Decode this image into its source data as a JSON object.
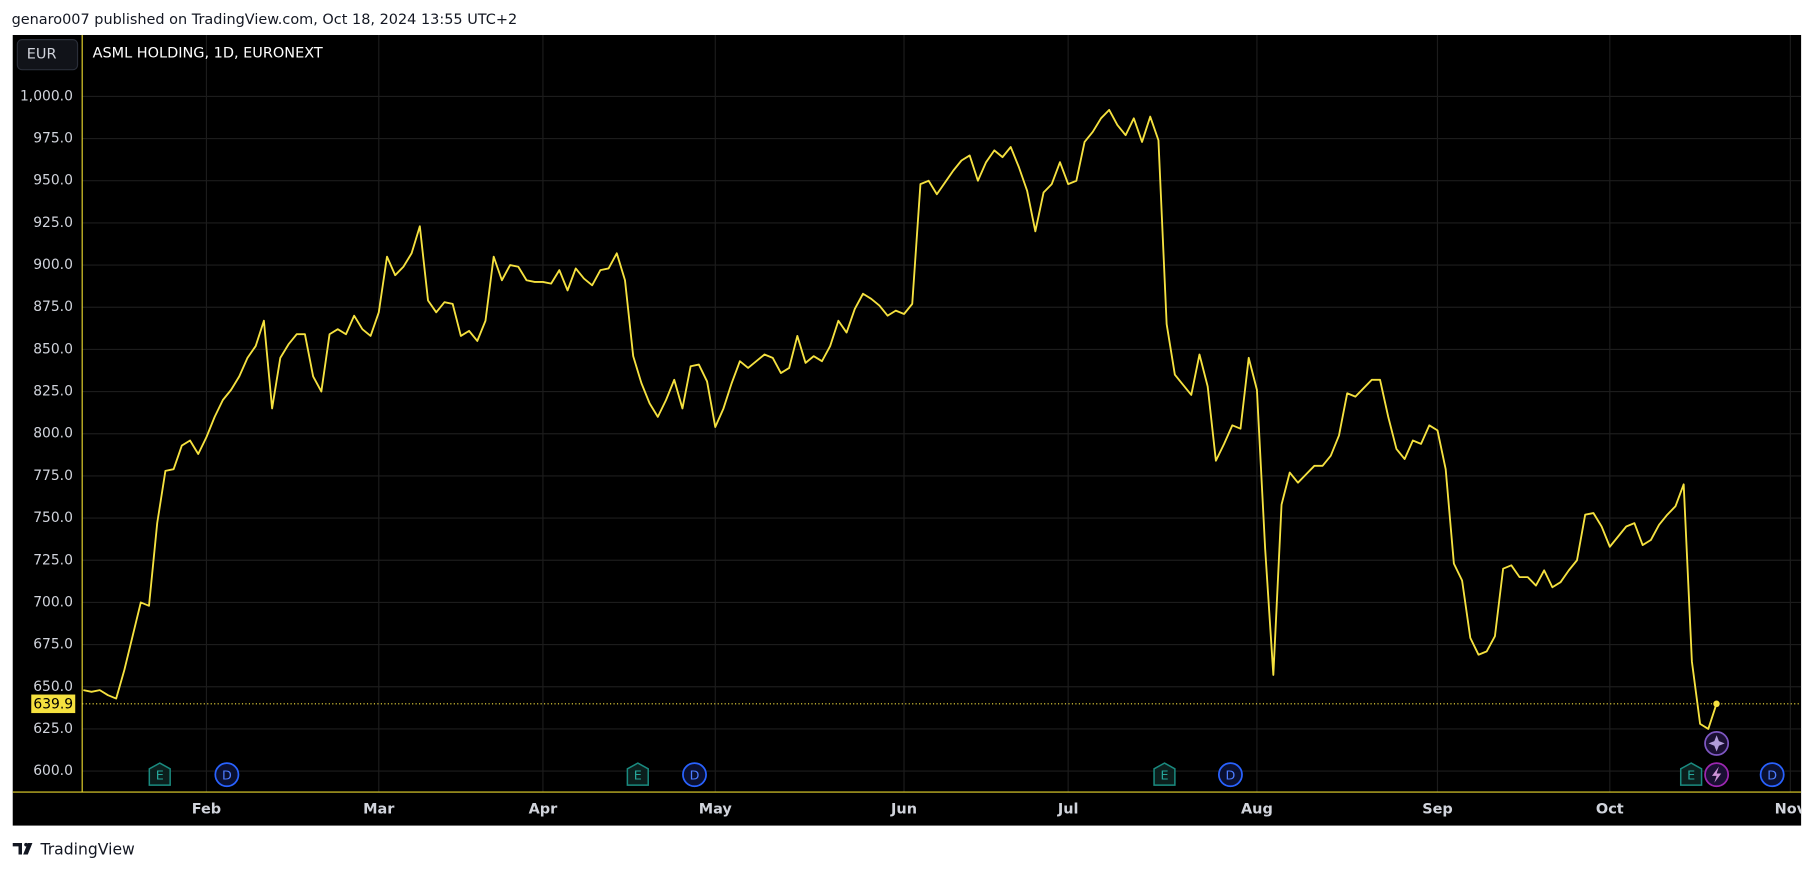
{
  "header": "genaro007 published on TradingView.com, Oct 18, 2024 13:55 UTC+2",
  "footer": "TradingView",
  "currency_button": "EUR",
  "chart_data": {
    "type": "line",
    "title": "ASML HOLDING, 1D, EURONEXT",
    "color": "#f5e13f",
    "grid": true,
    "ylim": [
      587.6,
      1036.4
    ],
    "yticks": [
      {
        "value": 600,
        "label": "600.0"
      },
      {
        "value": 625,
        "label": "625.0"
      },
      {
        "value": 650,
        "label": "650.0"
      },
      {
        "value": 675,
        "label": "675.0"
      },
      {
        "value": 700,
        "label": "700.0"
      },
      {
        "value": 725,
        "label": "725.0"
      },
      {
        "value": 750,
        "label": "750.0"
      },
      {
        "value": 775,
        "label": "775.0"
      },
      {
        "value": 800,
        "label": "800.0"
      },
      {
        "value": 825,
        "label": "825.0"
      },
      {
        "value": 850,
        "label": "850.0"
      },
      {
        "value": 875,
        "label": "875.0"
      },
      {
        "value": 900,
        "label": "900.0"
      },
      {
        "value": 925,
        "label": "925.0"
      },
      {
        "value": 950,
        "label": "950.0"
      },
      {
        "value": 975,
        "label": "975.0"
      },
      {
        "value": 1000,
        "label": "1,000.0"
      }
    ],
    "categories": [
      null,
      null,
      null,
      null,
      null,
      null,
      null,
      null,
      null,
      null,
      null,
      null,
      null,
      null,
      null,
      "Feb",
      null,
      null,
      null,
      null,
      null,
      null,
      null,
      null,
      null,
      null,
      null,
      null,
      null,
      null,
      null,
      null,
      null,
      null,
      null,
      null,
      "Mar",
      null,
      null,
      null,
      null,
      null,
      null,
      null,
      null,
      null,
      null,
      null,
      null,
      null,
      null,
      null,
      null,
      null,
      null,
      null,
      "Apr",
      null,
      null,
      null,
      null,
      null,
      null,
      null,
      null,
      null,
      null,
      null,
      null,
      null,
      null,
      null,
      null,
      null,
      null,
      null,
      null,
      "May",
      null,
      null,
      null,
      null,
      null,
      null,
      null,
      null,
      null,
      null,
      null,
      null,
      null,
      null,
      null,
      null,
      null,
      null,
      null,
      null,
      null,
      null,
      "Jun",
      null,
      null,
      null,
      null,
      null,
      null,
      null,
      null,
      null,
      null,
      null,
      null,
      null,
      null,
      null,
      null,
      null,
      null,
      null,
      "Jul",
      null,
      null,
      null,
      null,
      null,
      null,
      null,
      null,
      null,
      null,
      null,
      null,
      null,
      null,
      null,
      null,
      null,
      null,
      null,
      null,
      null,
      null,
      "Aug",
      null,
      null,
      null,
      null,
      null,
      null,
      null,
      null,
      null,
      null,
      null,
      null,
      null,
      null,
      null,
      null,
      null,
      null,
      null,
      null,
      null,
      "Sep",
      null,
      null,
      null,
      null,
      null,
      null,
      null,
      null,
      null,
      null,
      null,
      null,
      null,
      null,
      null,
      null,
      null,
      null,
      null,
      null,
      "Oct",
      null,
      null,
      null,
      null,
      null,
      null,
      null,
      null,
      null,
      null,
      null,
      null,
      null,
      null,
      null,
      null,
      null,
      null,
      null,
      null,
      null,
      "Nov"
    ],
    "values": [
      648,
      647,
      648,
      645,
      643,
      660,
      680,
      700,
      698,
      747,
      778,
      779,
      793,
      796,
      788,
      798,
      810,
      820,
      826,
      834,
      845,
      852,
      867,
      815,
      845,
      853,
      859,
      859,
      834,
      825,
      859,
      862,
      859,
      870,
      862,
      858,
      872,
      905,
      894,
      899,
      907,
      923,
      879,
      872,
      878,
      877,
      858,
      861,
      855,
      867,
      905,
      891,
      900,
      899,
      891,
      890,
      890,
      889,
      897,
      885,
      898,
      892,
      888,
      897,
      898,
      907,
      891,
      846,
      830,
      818,
      810,
      820,
      832,
      815,
      840,
      841,
      831,
      804,
      815,
      830,
      843,
      839,
      843,
      847,
      845,
      836,
      839,
      858,
      842,
      846,
      843,
      852,
      867,
      860,
      874,
      883,
      880,
      876,
      870,
      873,
      871,
      877,
      948,
      950,
      942,
      949,
      956,
      962,
      965,
      950,
      961,
      968,
      964,
      970,
      958,
      944,
      920,
      943,
      948,
      961,
      948,
      950,
      973,
      979,
      987,
      992,
      983,
      977,
      987,
      973,
      988,
      974,
      865,
      835,
      829,
      823,
      847,
      828,
      784,
      794,
      805,
      803,
      845,
      826,
      732,
      657,
      758,
      777,
      771,
      776,
      781,
      781,
      787,
      799,
      824,
      822,
      827,
      832,
      832,
      810,
      791,
      785,
      796,
      794,
      805,
      802,
      779,
      723,
      713,
      679,
      669,
      671,
      680,
      720,
      722,
      715,
      715,
      710,
      719,
      709,
      712,
      719,
      725,
      752,
      753,
      745,
      733,
      739,
      745,
      747,
      734,
      737,
      746,
      752,
      757,
      770,
      665,
      628,
      625,
      639.9,
      null,
      null,
      null,
      null,
      null,
      null,
      null,
      null,
      null
    ],
    "events": [
      "E",
      "D",
      "E",
      "D",
      "E",
      "D",
      "E",
      "D"
    ]
  }
}
